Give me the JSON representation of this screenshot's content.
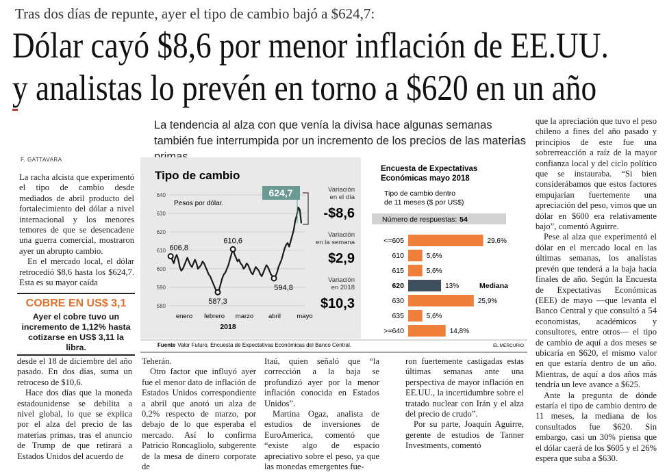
{
  "article": {
    "kicker": "Tras dos días de repunte, ayer el tipo de cambio bajó a $624,7:",
    "headline": [
      "Dólar cayó $8,6 por menor inflación de EE.UU.",
      "y analistas lo prevén en torno a $620 en un año"
    ],
    "lead": "La tendencia al alza con que venía la divisa hace algunas semanas también fue interrumpida por un incremento de los precios de las materias primas.",
    "byline": "F. GATTAVARA",
    "left_top": [
      "La racha alcista que experimentó el tipo de cambio desde mediados de abril producto del fortalecimiento del dólar a nivel internacional y los menores temores de que se desencadene una guerra comercial, mostraron ayer un abrupto cambio.",
      "En el mercado local, el dólar retrocedió $8,6 hasta los $624,7. Esta es su mayor caída"
    ],
    "sidebar": {
      "title": "COBRE EN US$ 3,1",
      "text": "Ayer el cobre tuvo un incremento de 1,12% hasta cotizarse en US$ 3,11 la libra."
    },
    "col1": [
      "desde el 18 de diciembre del año pasado. En dos días, suma un retroceso de $10,6.",
      "Hace dos días que la moneda estadounidense se debilita a nivel global, lo que se explica por el alza del precio de las materias primas, tras el anuncio de Trump de que retirará a Estados Unidos del acuerdo de"
    ],
    "col2": [
      "Teherán.",
      "Otro factor que influyó ayer fue el menor dato de inflación de Estados Unidos correspondiente a abril que anotó un alza de 0,2% respecto de marzo, por debajo de lo que esperaba el mercado. Así lo confirma Patricio Roncagliolo, subgerente de la mesa de dinero corporate de"
    ],
    "col3": [
      "Itaú, quien señaló que “la corrección a la baja se profundizó ayer por la menor inflación conocida en Estados Unidos”.",
      "Martina Ogaz, analista de estudios de inversiones de EuroAmerica, comentó que “existe algo de espacio apreciativo sobre el peso, ya que las monedas emergentes fue-"
    ],
    "col4": [
      "ron fuertemente castigadas estas últimas semanas ante una perspectiva de mayor inflación en EE.UU., la incertidumbre sobre el tratado nuclear con Irán y el alza del precio de crudo”.",
      "Por su parte, Joaquín Aguirre, gerente de estudios de Tanner Investments, comentó"
    ],
    "right": [
      "que la apreciación que tuvo el peso chileno a fines del año pasado y principios de este fue una sobrerreacción a raíz de la mayor confianza local y del ciclo político que se instauraba. “Si bien considerábamos que estos factores empujarían fuertemente una apreciación del peso, vimos que un dólar en $600 era relativamente bajo”, comentó Aguirre.",
      "Pese al alza que experimentó el dólar en el mercado local en las últimas semanas, los analistas prevén que tenderá a la baja hacia finales de año. Según la Encuesta de Expectativas Económicas (EEE) de mayo —que levanta el Banco Central y que consultó a 54 economistas, académicos y consultores, entre otros— el tipo de cambio de aquí a dos meses se ubicaría en $620, el mismo valor en que estaría dentro de un año. Mientras, de aquí a dos años más tendría un leve avance a $625.",
      "Ante la pregunta de dónde estaría el tipo de cambio dentro de 11 meses, la mediana de los consultados fue $620. Sin embargo, casi un 30% piensa que el dólar caerá de los $605 y el 26% espera que suba a $630."
    ]
  },
  "chart_data": [
    {
      "type": "line",
      "title": "Tipo de cambio",
      "subtitle": "Pesos por dólar.",
      "xtick_labels": [
        "enero",
        "febrero",
        "marzo",
        "abril",
        "mayo"
      ],
      "x_label": "2018",
      "values": [
        605.5,
        606.8,
        605,
        603,
        606,
        607.5,
        605,
        601,
        599,
        600,
        602,
        604,
        606,
        604,
        602,
        601,
        603,
        605,
        603,
        600,
        601,
        602,
        604,
        603,
        601,
        599,
        597,
        596,
        594,
        592,
        590,
        588,
        587.3,
        589,
        592,
        595,
        597,
        598,
        600,
        602,
        605,
        608,
        610.6,
        608,
        606,
        604,
        605,
        603,
        602,
        600,
        601,
        603,
        602,
        600,
        598,
        597,
        599,
        601,
        600,
        599,
        597,
        596,
        598,
        600,
        602,
        601,
        599,
        597,
        596,
        594.8,
        596,
        598,
        601,
        603,
        605,
        608,
        611,
        613,
        614,
        612,
        615,
        618,
        621,
        626,
        629,
        633.3,
        632,
        624.7
      ],
      "color": "#1a1a1a",
      "ylim": [
        577,
        643
      ],
      "yticks": [
        580,
        590,
        600,
        610,
        620,
        630,
        640
      ],
      "grid": true,
      "annotations": [
        {
          "value": 606.8,
          "label": "606,8"
        },
        {
          "value": 587.3,
          "label": "587,3"
        },
        {
          "value": 610.6,
          "label": "610,6"
        },
        {
          "value": 594.8,
          "label": "594,8"
        }
      ],
      "highlight": {
        "value": 624.7,
        "label": "624,7",
        "color": "#6b9a94"
      },
      "stats": [
        {
          "label": [
            "Variación",
            "en el día"
          ],
          "value": -8.6,
          "value_label": "-$8,6"
        },
        {
          "label": [
            "Variación",
            "en la semana"
          ],
          "value": 2.9,
          "value_label": "$2,9"
        },
        {
          "label": [
            "Variación",
            "en 2018"
          ],
          "value": 10.3,
          "value_label": "$10,3"
        }
      ]
    },
    {
      "type": "barh",
      "title": [
        "Encuesta de Expectativas",
        "Económicas mayo 2018"
      ],
      "subtitle": [
        "Tipo de cambio dentro",
        "de 11 meses ($ por US$)"
      ],
      "responses": {
        "label": "Número de respuestas:",
        "value": 54
      },
      "categories": [
        "<=605",
        "610",
        "615",
        "620",
        "630",
        "635",
        ">=640"
      ],
      "values": [
        29.6,
        5.6,
        5.6,
        13,
        25.9,
        5.6,
        14.8
      ],
      "value_labels": [
        "29,6%",
        "5,6%",
        "5,6%",
        "13%",
        "25,9%",
        "5,6%",
        "14,8%"
      ],
      "color": "#f07f3c",
      "median": {
        "category": "620",
        "label": "Mediana",
        "color": "#3d4f5c"
      }
    }
  ],
  "graphic_footer": {
    "source_label": "Fuente",
    "source": "Valor Futuro, Encuesta de Expectativas Económicas del Banco Central.",
    "credit": "EL MERCURIO"
  }
}
